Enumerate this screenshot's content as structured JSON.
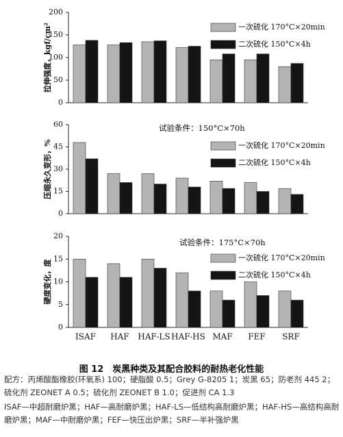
{
  "chart_data": [
    {
      "type": "bar",
      "y_label": "拉伸强度，kgf/cm²",
      "categories": [
        null,
        null,
        null,
        null,
        null,
        null,
        null
      ],
      "series": [
        {
          "name": "一次硫化 170°C×20min",
          "color": "#b4b4b4",
          "values": [
            128,
            128,
            135,
            122,
            95,
            95,
            80
          ]
        },
        {
          "name": "二次硫化 150°C×4h",
          "color": "#141414",
          "values": [
            138,
            133,
            137,
            125,
            108,
            108,
            87
          ]
        }
      ],
      "ylim": [
        0,
        200
      ],
      "yticks": [
        0,
        50,
        100,
        150,
        200
      ]
    },
    {
      "type": "bar",
      "annotation": "试验条件：150°C×70h",
      "y_label": "压缩永久变形，%",
      "categories": [
        null,
        null,
        null,
        null,
        null,
        null,
        null
      ],
      "series": [
        {
          "name": "一次硫化 170°C×20min",
          "color": "#b4b4b4",
          "values": [
            48,
            27,
            27,
            24,
            22,
            21,
            17
          ]
        },
        {
          "name": "二次硫化 150°C×4h",
          "color": "#141414",
          "values": [
            37,
            21,
            20,
            18,
            17,
            15,
            13
          ]
        }
      ],
      "ylim": [
        0,
        60
      ],
      "yticks": [
        0,
        15,
        30,
        45,
        60
      ]
    },
    {
      "type": "bar",
      "annotation": "试验条件：175°C×70h",
      "y_label": "硬度变化，度",
      "categories": [
        "ISAF",
        "HAF",
        "HAF-LS",
        "HAF-HS",
        "MAF",
        "FEF",
        "SRF"
      ],
      "series": [
        {
          "name": "一次硫化 170°C×20min",
          "color": "#b4b4b4",
          "values": [
            15,
            14,
            15,
            12,
            8,
            10,
            8
          ]
        },
        {
          "name": "二次硫化 150°C×4h",
          "color": "#141414",
          "values": [
            11,
            11,
            13,
            8,
            6,
            7,
            6
          ]
        }
      ],
      "ylim": [
        0,
        20
      ],
      "yticks": [
        0,
        5,
        10,
        15,
        20
      ]
    }
  ],
  "caption": "图 12　炭黑种类及其配合胶料的耐热老化性能",
  "formula": "配方：丙烯酸酯橡胶(环氧系) 100；硬脂酸 0.5；Grey G-8205 1；炭黑 65；防老剂 445 2；硫化剂 ZEONET A 0.5；硫化剂 ZEONET B 1.0；促进剂 CA 1.3",
  "abbreviations": "ISAF—中超耐磨炉黑；HAF—高耐磨炉黑；HAF-LS—低结构高耐磨炉黑；HAF-HS—高结构高耐磨炉黑；MAF—中耐磨炉黑；FEF—快压出炉黑；SRF—半补强炉黑"
}
